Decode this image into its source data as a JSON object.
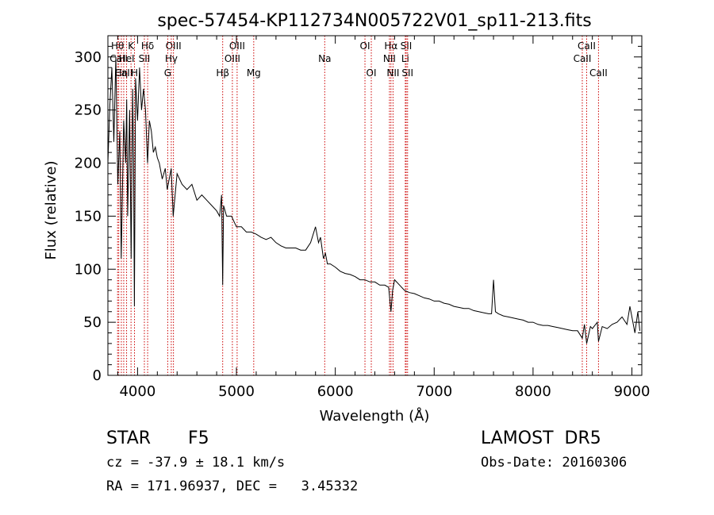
{
  "chart_data": {
    "type": "line",
    "title": "spec-57454-KP112734N005722V01_sp11-213.fits",
    "xlabel": "Wavelength (Å)",
    "ylabel": "Flux (relative)",
    "xlim": [
      3700,
      9100
    ],
    "ylim": [
      0,
      320
    ],
    "x_ticks": [
      4000,
      5000,
      6000,
      7000,
      8000,
      9000
    ],
    "y_ticks": [
      0,
      50,
      100,
      150,
      200,
      250,
      300
    ],
    "grid": false,
    "line_color": "#000000",
    "marker_color": "#cc0000",
    "series": [
      {
        "x": [
          3700,
          3720,
          3740,
          3760,
          3780,
          3800,
          3820,
          3835,
          3860,
          3880,
          3890,
          3900,
          3920,
          3935,
          3950,
          3960,
          3968,
          3980,
          4000,
          4020,
          4040,
          4060,
          4080,
          4101,
          4120,
          4140,
          4160,
          4180,
          4200,
          4220,
          4250,
          4280,
          4300,
          4340,
          4360,
          4400,
          4450,
          4500,
          4550,
          4600,
          4650,
          4700,
          4750,
          4800,
          4830,
          4850,
          4861,
          4870,
          4900,
          4950,
          5000,
          5050,
          5100,
          5150,
          5200,
          5250,
          5300,
          5350,
          5400,
          5450,
          5500,
          5550,
          5600,
          5650,
          5700,
          5750,
          5800,
          5830,
          5850,
          5880,
          5900,
          5920,
          5950,
          6000,
          6050,
          6100,
          6150,
          6200,
          6250,
          6300,
          6350,
          6400,
          6450,
          6500,
          6540,
          6563,
          6580,
          6600,
          6650,
          6700,
          6750,
          6800,
          6850,
          6900,
          6950,
          7000,
          7050,
          7100,
          7150,
          7200,
          7250,
          7300,
          7350,
          7400,
          7450,
          7500,
          7550,
          7580,
          7600,
          7620,
          7650,
          7700,
          7750,
          7800,
          7850,
          7900,
          7950,
          8000,
          8050,
          8100,
          8150,
          8200,
          8250,
          8300,
          8350,
          8400,
          8450,
          8498,
          8520,
          8542,
          8580,
          8600,
          8650,
          8662,
          8700,
          8750,
          8800,
          8850,
          8900,
          8950,
          8980,
          9000,
          9030,
          9060,
          9080
        ],
        "y": [
          200,
          255,
          290,
          220,
          300,
          180,
          230,
          110,
          240,
          200,
          260,
          150,
          250,
          110,
          270,
          200,
          65,
          280,
          240,
          290,
          250,
          270,
          250,
          200,
          240,
          230,
          210,
          215,
          205,
          200,
          185,
          195,
          175,
          195,
          150,
          190,
          180,
          175,
          180,
          165,
          170,
          165,
          160,
          155,
          150,
          170,
          85,
          160,
          150,
          150,
          140,
          140,
          135,
          135,
          133,
          130,
          128,
          130,
          125,
          122,
          120,
          120,
          120,
          118,
          118,
          125,
          140,
          125,
          130,
          110,
          115,
          105,
          105,
          102,
          98,
          96,
          95,
          93,
          90,
          90,
          88,
          88,
          85,
          85,
          83,
          60,
          80,
          90,
          85,
          80,
          78,
          77,
          75,
          73,
          72,
          70,
          70,
          68,
          67,
          65,
          64,
          63,
          63,
          61,
          60,
          59,
          58,
          58,
          90,
          60,
          58,
          56,
          55,
          54,
          53,
          52,
          50,
          50,
          48,
          47,
          47,
          46,
          45,
          44,
          43,
          42,
          42,
          35,
          48,
          30,
          46,
          44,
          50,
          32,
          46,
          44,
          48,
          50,
          55,
          48,
          65,
          55,
          40,
          60,
          42
        ]
      }
    ],
    "line_markers": [
      {
        "label": "Hθ",
        "x": 3798,
        "row": 1
      },
      {
        "label": "CaII",
        "x": 3810,
        "row": 2
      },
      {
        "label": "CaII",
        "x": 3860,
        "row": 3
      },
      {
        "label": "Hη",
        "x": 3836,
        "row": 3
      },
      {
        "label": "K",
        "x": 3934,
        "row": 1
      },
      {
        "label": "HeI",
        "x": 3889,
        "row": 2
      },
      {
        "label": "H",
        "x": 3969,
        "row": 3
      },
      {
        "label": "Hδ",
        "x": 4102,
        "row": 1
      },
      {
        "label": "SII",
        "x": 4069,
        "row": 2
      },
      {
        "label": "OIII",
        "x": 4363,
        "row": 1
      },
      {
        "label": "Hγ",
        "x": 4341,
        "row": 2
      },
      {
        "label": "G",
        "x": 4305,
        "row": 3
      },
      {
        "label": "Hβ",
        "x": 4861,
        "row": 3
      },
      {
        "label": "OIII",
        "x": 5007,
        "row": 1
      },
      {
        "label": "OIII",
        "x": 4959,
        "row": 2
      },
      {
        "label": "Mg",
        "x": 5175,
        "row": 3
      },
      {
        "label": "Na",
        "x": 5893,
        "row": 2
      },
      {
        "label": "OI",
        "x": 6300,
        "row": 1
      },
      {
        "label": "OI",
        "x": 6364,
        "row": 3
      },
      {
        "label": "Hα",
        "x": 6563,
        "row": 1
      },
      {
        "label": "SII",
        "x": 6717,
        "row": 1
      },
      {
        "label": "NII",
        "x": 6548,
        "row": 2
      },
      {
        "label": "Li",
        "x": 6708,
        "row": 2
      },
      {
        "label": "NII",
        "x": 6584,
        "row": 3
      },
      {
        "label": "SII",
        "x": 6731,
        "row": 3
      },
      {
        "label": "CaII",
        "x": 8542,
        "row": 1
      },
      {
        "label": "CaII",
        "x": 8498,
        "row": 2
      },
      {
        "label": "CaII",
        "x": 8662,
        "row": 3
      }
    ]
  },
  "info": {
    "class": "STAR",
    "subclass": "F5",
    "survey": "LAMOST  DR5",
    "redshift": "cz = -37.9 ± 18.1 km/s",
    "obs_date": "Obs-Date: 20160306",
    "coords": "RA = 171.96937, DEC =   3.45332"
  }
}
